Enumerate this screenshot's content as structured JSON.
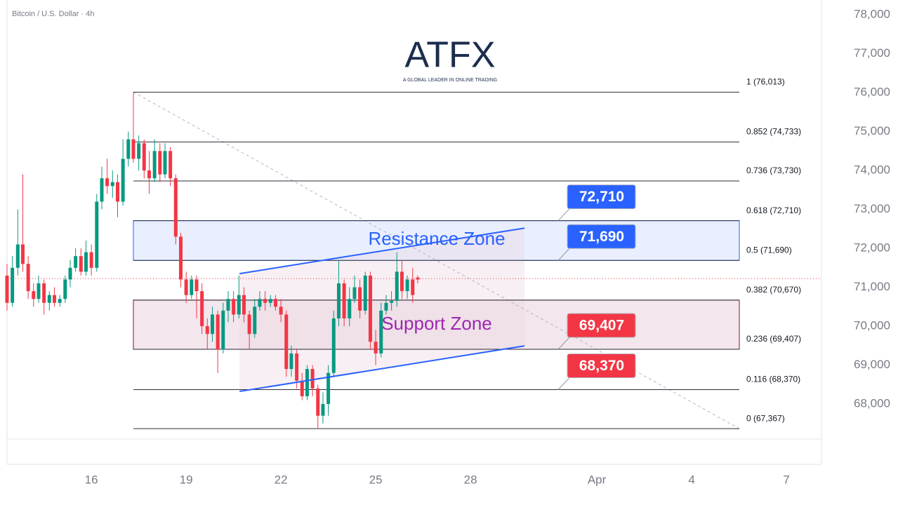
{
  "chart_data": {
    "type": "candlestick",
    "title": "Bitcoin / U.S. Dollar · 4h",
    "logo": {
      "name": "ATFX",
      "tagline": "A GLOBAL LEADER IN ONLINE TRADING"
    },
    "xlim": [
      13.33,
      39.11
    ],
    "xticks": [
      16,
      19,
      22,
      25,
      28,
      {
        "value": 32,
        "label": "Apr"
      },
      {
        "value": 35,
        "label": "4"
      },
      {
        "value": 38,
        "label": "7"
      }
    ],
    "ylim": [
      67100,
      78380
    ],
    "yticks": [
      {
        "value": 68000,
        "label": "68,000"
      },
      {
        "value": 69000,
        "label": "69,000"
      },
      {
        "value": 70000,
        "label": "70,000"
      },
      {
        "value": 71000,
        "label": "71,000"
      },
      {
        "value": 72000,
        "label": "72,000"
      },
      {
        "value": 73000,
        "label": "73,000"
      },
      {
        "value": 74000,
        "label": "74,000"
      },
      {
        "value": 75000,
        "label": "75,000"
      },
      {
        "value": 76000,
        "label": "76,000"
      },
      {
        "value": 77000,
        "label": "77,000"
      },
      {
        "value": 78000,
        "label": "78,000"
      }
    ],
    "up_color": "#089981",
    "down_color": "#f23645",
    "x": [
      13.33,
      13.5,
      13.67,
      13.83,
      14,
      14.17,
      14.33,
      14.5,
      14.67,
      14.83,
      15,
      15.17,
      15.33,
      15.5,
      15.67,
      15.83,
      16,
      16.17,
      16.33,
      16.5,
      16.67,
      16.83,
      17,
      17.17,
      17.33,
      17.5,
      17.67,
      17.83,
      18,
      18.17,
      18.33,
      18.5,
      18.67,
      18.83,
      19,
      19.17,
      19.33,
      19.5,
      19.67,
      19.83,
      20,
      20.17,
      20.33,
      20.5,
      20.67,
      20.83,
      21,
      21.17,
      21.33,
      21.5,
      21.67,
      21.83,
      22,
      22.17,
      22.33,
      22.5,
      22.67,
      22.83,
      23,
      23.17,
      23.33,
      23.5,
      23.67,
      23.83,
      24,
      24.17,
      24.33,
      24.5,
      24.67,
      24.83,
      25,
      25.17,
      25.33,
      25.5,
      25.67,
      25.83,
      26,
      26.17,
      26.33
    ],
    "open": [
      71300,
      70600,
      71500,
      72100,
      71600,
      70900,
      70700,
      71100,
      70600,
      70800,
      70600,
      70700,
      71200,
      71500,
      71800,
      71400,
      71900,
      71500,
      73200,
      73800,
      73600,
      73700,
      73200,
      74300,
      74800,
      74300,
      74700,
      74000,
      73800,
      74500,
      73900,
      74500,
      73800,
      72300,
      71200,
      70800,
      71200,
      70900,
      70000,
      69800,
      70300,
      69400,
      70400,
      70700,
      70300,
      70800,
      70300,
      69800,
      70500,
      70700,
      70600,
      70700,
      70500,
      70300,
      68900,
      69300,
      68600,
      68200,
      68900,
      68400,
      67700,
      68000,
      68800,
      70200,
      71100,
      70200,
      70700,
      71000,
      70400,
      71300,
      69600,
      69300,
      70400,
      70600,
      70650,
      71400,
      70900,
      71200,
      71250
    ],
    "high": [
      71600,
      71800,
      73000,
      73900,
      71800,
      71100,
      71300,
      71200,
      70900,
      71000,
      70800,
      71300,
      71700,
      72000,
      72000,
      72200,
      72100,
      73400,
      74100,
      74300,
      74000,
      73900,
      74800,
      75000,
      76013,
      74900,
      74800,
      74500,
      74800,
      74700,
      74700,
      74600,
      73900,
      72400,
      71400,
      71300,
      71300,
      71100,
      70200,
      70500,
      70400,
      70600,
      70900,
      70900,
      71300,
      71000,
      70400,
      70700,
      70900,
      70900,
      70800,
      70800,
      70700,
      70400,
      69500,
      69400,
      68800,
      69000,
      69000,
      68500,
      68300,
      69000,
      70400,
      71700,
      71200,
      71000,
      71300,
      71200,
      71400,
      71400,
      69900,
      70600,
      70800,
      70900,
      71900,
      71700,
      71300,
      71500,
      71300
    ],
    "low": [
      70400,
      70500,
      71300,
      71400,
      70700,
      70500,
      70600,
      70300,
      70400,
      70500,
      70500,
      70600,
      71000,
      71400,
      71300,
      71300,
      71300,
      71400,
      73000,
      73400,
      73300,
      72800,
      73100,
      74100,
      74200,
      74000,
      73800,
      73400,
      73700,
      73700,
      73800,
      73600,
      72100,
      71000,
      70600,
      70700,
      70200,
      69800,
      69400,
      69600,
      68800,
      69300,
      70100,
      70100,
      70200,
      70100,
      69400,
      69700,
      70400,
      70400,
      70500,
      70400,
      70100,
      68700,
      68700,
      68400,
      68100,
      68100,
      68200,
      67367,
      67500,
      67700,
      68700,
      70000,
      70000,
      70000,
      70600,
      70200,
      70300,
      69400,
      69000,
      69200,
      70300,
      70400,
      70500,
      70700,
      70700,
      70600,
      71100
    ],
    "close": [
      70600,
      71500,
      72100,
      71600,
      70900,
      70700,
      71100,
      70600,
      70800,
      70600,
      70700,
      71200,
      71500,
      71800,
      71400,
      71900,
      71500,
      73200,
      73800,
      73600,
      73700,
      73200,
      74300,
      74800,
      74300,
      74700,
      74000,
      73800,
      74500,
      73900,
      74500,
      73800,
      72300,
      71200,
      70800,
      71200,
      70900,
      70000,
      69800,
      70300,
      69400,
      70400,
      70700,
      70300,
      70800,
      70300,
      69800,
      70500,
      70700,
      70600,
      70700,
      70500,
      70300,
      68900,
      69300,
      68600,
      68200,
      68900,
      68400,
      67700,
      68000,
      68800,
      70200,
      71100,
      70200,
      70700,
      71000,
      70400,
      71300,
      69600,
      69300,
      70400,
      70600,
      70650,
      71400,
      70900,
      71200,
      70800,
      71200
    ],
    "last_price": 71225,
    "fib_range": {
      "x": [
        17.33,
        36.51
      ],
      "y": [
        76013,
        67367
      ]
    },
    "fib_levels": [
      {
        "value": 76013,
        "label": "1 (76,013)"
      },
      {
        "value": 74733,
        "label": "0.852 (74,733)"
      },
      {
        "value": 73730,
        "label": "0.736 (73,730)"
      },
      {
        "value": 72710,
        "label": "0.618 (72,710)"
      },
      {
        "value": 71690,
        "label": "0.5 (71,690)"
      },
      {
        "value": 70670,
        "label": "0.382 (70,670)"
      },
      {
        "value": 69407,
        "label": "0.236 (69,407)"
      },
      {
        "value": 68370,
        "label": "0.116 (68,370)"
      },
      {
        "value": 67367,
        "label": "0 (67,367)"
      }
    ],
    "zones": [
      {
        "label": "Resistance Zone",
        "from": 71690,
        "to": 72710,
        "color": "#2962ff"
      },
      {
        "label": "Support Zone",
        "from": 69407,
        "to": 70670,
        "color": "#880e4f",
        "text_color": "#9c27b0"
      }
    ],
    "channel": [
      {
        "x": [
          20.69,
          29.71
        ],
        "y": [
          71350,
          72520
        ]
      },
      {
        "x": [
          20.69,
          29.71
        ],
        "y": [
          68324,
          69495
        ]
      }
    ],
    "callouts": [
      {
        "value": 72710,
        "label": "72,710",
        "color": "#2962ff"
      },
      {
        "value": 71690,
        "label": "71,690",
        "color": "#2962ff"
      },
      {
        "value": 69407,
        "label": "69,407",
        "color": "#f23645"
      },
      {
        "value": 68370,
        "label": "68,370",
        "color": "#f23645"
      }
    ]
  }
}
